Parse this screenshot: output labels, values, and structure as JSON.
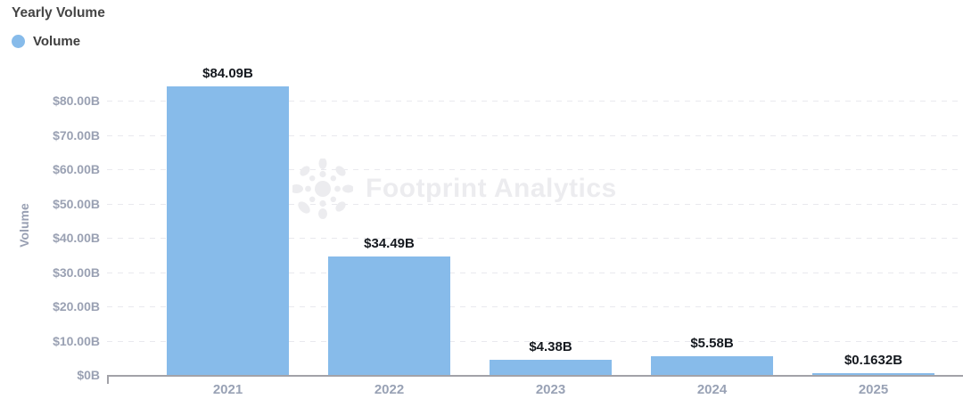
{
  "title": "Yearly Volume",
  "legend": {
    "label": "Volume",
    "color": "#87BBEA"
  },
  "watermark": {
    "text": "Footprint Analytics"
  },
  "chart_data": {
    "type": "bar",
    "title": "Yearly Volume",
    "categories": [
      "2021",
      "2022",
      "2023",
      "2024",
      "2025"
    ],
    "series": [
      {
        "name": "Volume",
        "values": [
          84.09,
          34.49,
          4.38,
          5.58,
          0.1632
        ]
      }
    ],
    "value_labels": [
      "$84.09B",
      "$34.49B",
      "$4.38B",
      "$5.58B",
      "$0.1632B"
    ],
    "xlabel": "",
    "ylabel": "Volume",
    "ylim": [
      0,
      88
    ],
    "y_tick_values": [
      0,
      10,
      20,
      30,
      40,
      50,
      60,
      70,
      80
    ],
    "y_ticks": [
      "$0B",
      "$10.00B",
      "$20.00B",
      "$30.00B",
      "$40.00B",
      "$50.00B",
      "$60.00B",
      "$70.00B",
      "$80.00B"
    ],
    "grid": "horizontal-dashed",
    "legend_position": "top-left",
    "bar_color": "#87BBEA",
    "unit": "USD billions"
  }
}
